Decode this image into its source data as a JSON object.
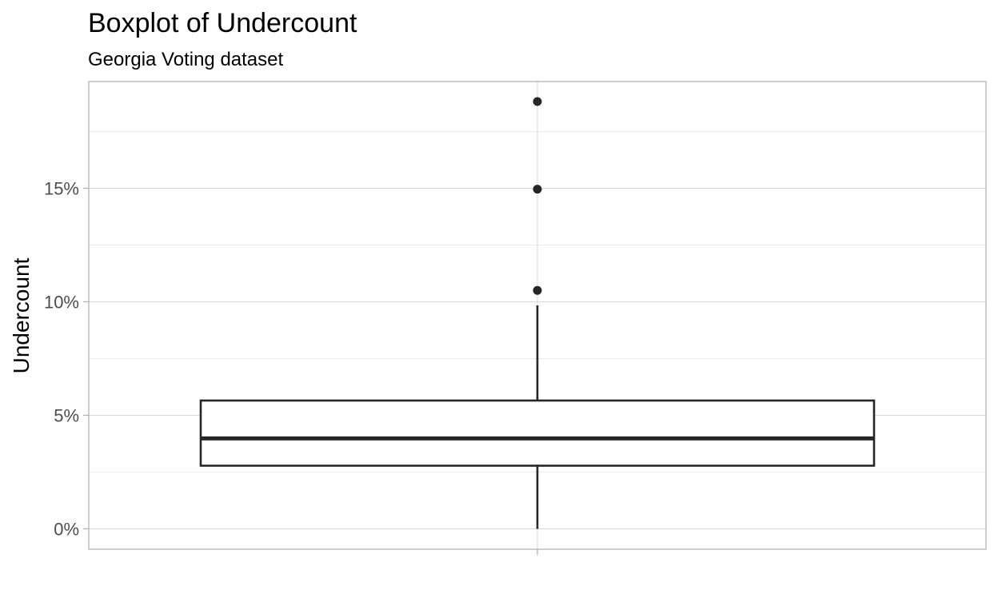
{
  "chart_data": {
    "type": "boxplot",
    "title": "Boxplot of Undercount",
    "subtitle": "Georgia Voting dataset",
    "xlabel": "",
    "ylabel": "Undercount",
    "y_format": "percent",
    "ylim": [
      -0.009,
      0.197
    ],
    "y_ticks": [
      {
        "value": 0.0,
        "label": "0%"
      },
      {
        "value": 0.05,
        "label": "5%"
      },
      {
        "value": 0.1,
        "label": "10%"
      },
      {
        "value": 0.15,
        "label": "15%"
      }
    ],
    "y_minor_ticks": [
      0.025,
      0.075,
      0.125,
      0.175
    ],
    "box": {
      "min": 0.0,
      "q1": 0.0278,
      "median": 0.0398,
      "q3": 0.0565,
      "max": 0.0984
    },
    "outliers": [
      0.105,
      0.1496,
      0.1882
    ],
    "grid": true,
    "legend": "none",
    "colors": {
      "box_stroke": "#262626",
      "box_fill": "#ffffff",
      "grid_major": "#d9d9d9",
      "grid_minor": "#ebebeb",
      "panel_border": "#b3b3b3",
      "tick_label": "#4d4d4d",
      "outlier": "#262626"
    }
  }
}
